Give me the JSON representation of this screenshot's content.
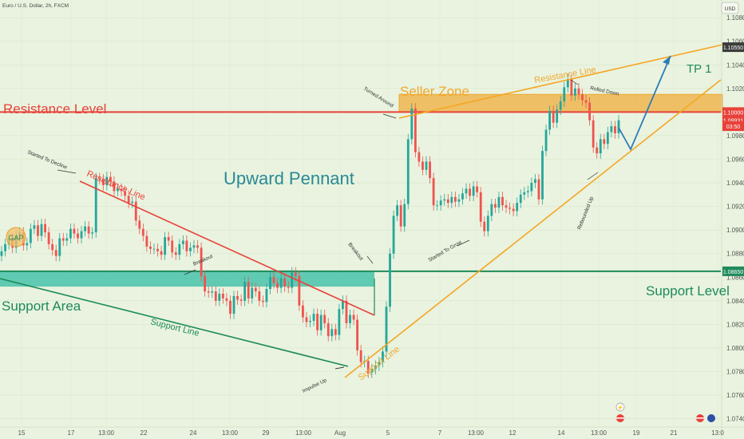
{
  "header": {
    "symbol_title": "Euro / U.S. Dollar, 2h, FXCM",
    "currency_button": "USD"
  },
  "chart_data": {
    "type": "candlestick",
    "title": "",
    "xlabel": "",
    "ylabel": "",
    "y_axis_ticks": [
      "1.10800",
      "1.10600",
      "1.10400",
      "1.10200",
      "1.10000",
      "1.09800",
      "1.09600",
      "1.09400",
      "1.09200",
      "1.09000",
      "1.08800",
      "1.08600",
      "1.08400",
      "1.08200",
      "1.08000",
      "1.07800",
      "1.07600",
      "1.07400"
    ],
    "x_axis_ticks": [
      "15",
      "17",
      "13:00",
      "22",
      "24",
      "13:00",
      "29",
      "13:00",
      "Aug",
      "5",
      "7",
      "13:00",
      "12",
      "14",
      "13:00",
      "19",
      "21",
      "13:0"
    ],
    "ylim": [
      1.0735,
      1.1095
    ],
    "price_labels": [
      {
        "text": "1.10550",
        "value": 1.1055,
        "bg": "#3b3b3b",
        "fg": "#ffffff"
      },
      {
        "text": "1.10000",
        "value": 1.1,
        "bg": "#e8413a",
        "fg": "#ffffff"
      },
      {
        "text": "1.09931",
        "value": 1.09931,
        "bg": "#e8413a",
        "fg": "#ffffff"
      },
      {
        "text": "03:50",
        "value": 1.0988,
        "bg": "#e8413a",
        "fg": "#ffffff"
      },
      {
        "text": "1.08650",
        "value": 1.0865,
        "bg": "#1e8a5a",
        "fg": "#ffffff"
      }
    ],
    "candles_close": [
      1.0882,
      1.0888,
      1.0893,
      1.0885,
      1.0895,
      1.0898,
      1.0887,
      1.0889,
      1.0901,
      1.0904,
      1.0895,
      1.0905,
      1.0898,
      1.0888,
      1.0883,
      1.0878,
      1.0893,
      1.0891,
      1.0893,
      1.0901,
      1.0897,
      1.0893,
      1.0899,
      1.0903,
      1.0897,
      1.0898,
      1.0944,
      1.0943,
      1.0938,
      1.0945,
      1.0941,
      1.0933,
      1.0935,
      1.0933,
      1.0929,
      1.0923,
      1.0924,
      1.0908,
      1.0901,
      1.0895,
      1.0886,
      1.0884,
      1.0884,
      1.0882,
      1.0879,
      1.0894,
      1.0891,
      1.0881,
      1.0879,
      1.0888,
      1.0891,
      1.0882,
      1.0885,
      1.0887,
      1.0885,
      1.0861,
      1.0848,
      1.0847,
      1.0848,
      1.084,
      1.0846,
      1.0842,
      1.084,
      1.0829,
      1.0844,
      1.0841,
      1.084,
      1.0856,
      1.0842,
      1.0851,
      1.0848,
      1.084,
      1.0839,
      1.085,
      1.086,
      1.0855,
      1.0851,
      1.0859,
      1.0852,
      1.0851,
      1.0864,
      1.0861,
      1.0836,
      1.0826,
      1.0822,
      1.0823,
      1.0829,
      1.0815,
      1.0828,
      1.0821,
      1.081,
      1.0816,
      1.0811,
      1.0833,
      1.084,
      1.0821,
      1.0828,
      1.0824,
      1.0798,
      1.0788,
      1.0789,
      1.0779,
      1.0782,
      1.0785,
      1.0788,
      1.0797,
      1.0835,
      1.088,
      1.0912,
      1.0921,
      1.0903,
      1.0922,
      1.0977,
      1.1003,
      1.0966,
      1.0958,
      1.0951,
      1.0958,
      1.0944,
      1.0921,
      1.0921,
      1.0925,
      1.0926,
      1.0923,
      1.0928,
      1.0924,
      1.0926,
      1.0931,
      1.0935,
      1.0929,
      1.0937,
      1.0932,
      1.0907,
      1.0899,
      1.0912,
      1.0922,
      1.0919,
      1.0928,
      1.0921,
      1.0919,
      1.0918,
      1.0916,
      1.0923,
      1.093,
      1.0932,
      1.0933,
      1.094,
      1.0943,
      1.0926,
      1.0967,
      1.0985,
      1.1001,
      1.0991,
      1.1002,
      1.1009,
      1.1021,
      1.1028,
      1.1014,
      1.102,
      1.1015,
      1.101,
      1.1008,
      1.0993,
      1.097,
      1.0965,
      1.0977,
      1.0973,
      1.0983,
      1.0988,
      1.0982,
      1.0993
    ]
  },
  "annotations": {
    "resistance_level": "Resistance Level",
    "support_area": "Support Area",
    "support_level": "Support Level",
    "seller_zone": "Seller Zone",
    "upward_pennant": "Upward Pennant",
    "tp1": "TP 1",
    "gap": "GAP",
    "resistance_line_1": "Resistance Line",
    "resistance_line_2": "Resistance Line",
    "support_line_1": "Support Line",
    "support_line_2": "Support Line",
    "started_to_decline": "Started To Decline",
    "breakout_1": "Breakout",
    "breakout_2": "Breakout",
    "turned_around": "Turned Around",
    "rolled_down": "Rolled Down",
    "started_to_grow": "Started To Grow",
    "rebounded_up": "Rebounded Up",
    "impulse_up": "Impulse Up"
  },
  "colors": {
    "background": "#e9f3df",
    "bull": "#26a69a",
    "bear": "#ef5350",
    "resistance": "#e8413a",
    "support": "#1e8a5a",
    "support_area": "#3fbfa6",
    "seller_zone": "#f0a830",
    "orange_line": "#f5a623",
    "projection": "#2c7cb8",
    "pennant_text": "#2a8a96"
  }
}
